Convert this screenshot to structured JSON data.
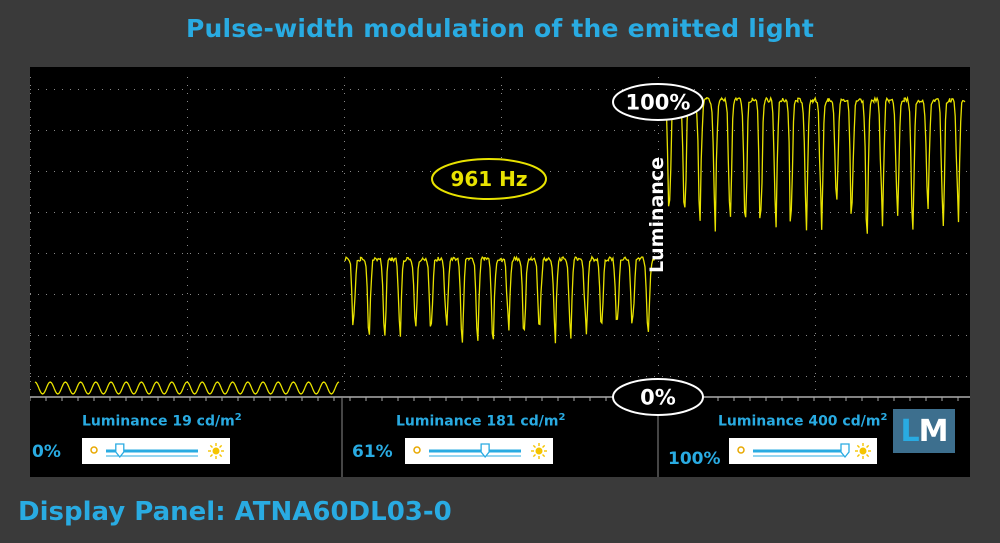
{
  "title": "Pulse-width modulation of the emitted light",
  "footer": "Display Panel: ATNA60DL03-0",
  "logo": "LM",
  "colors": {
    "accent": "#29abe2",
    "trace": "#e8e200",
    "background": "#3a3a3a",
    "scope": "#000000"
  },
  "annotations": {
    "frequency": "961 Hz",
    "top_level": "100%",
    "bottom_level": "0%",
    "axis_label": "Luminance"
  },
  "panels": [
    {
      "label": "Luminance  19 cd/m",
      "sup": "2",
      "pct": "0%",
      "slider_level": 0.15
    },
    {
      "label": "Luminance  181 cd/m",
      "sup": "2",
      "pct": "61%",
      "slider_level": 0.61
    },
    {
      "label": "Luminance  400 cd/m",
      "sup": "2",
      "pct": "100%",
      "slider_level": 1.0
    }
  ],
  "chart_data": {
    "type": "line",
    "title": "Pulse-width modulation of the emitted light",
    "ylabel": "Luminance",
    "ylim": [
      0,
      100
    ],
    "frequency_hz": 961,
    "grid": true,
    "series": [
      {
        "name": "Luminance 19 cd/m2",
        "brightness_setting": "0%",
        "high": 5,
        "low": 1,
        "cycles": 20
      },
      {
        "name": "Luminance 181 cd/m2",
        "brightness_setting": "61%",
        "high": 46,
        "low": 20,
        "cycles": 20
      },
      {
        "name": "Luminance 400 cd/m2",
        "brightness_setting": "100%",
        "high": 99,
        "low": 55,
        "cycles": 20
      }
    ]
  }
}
